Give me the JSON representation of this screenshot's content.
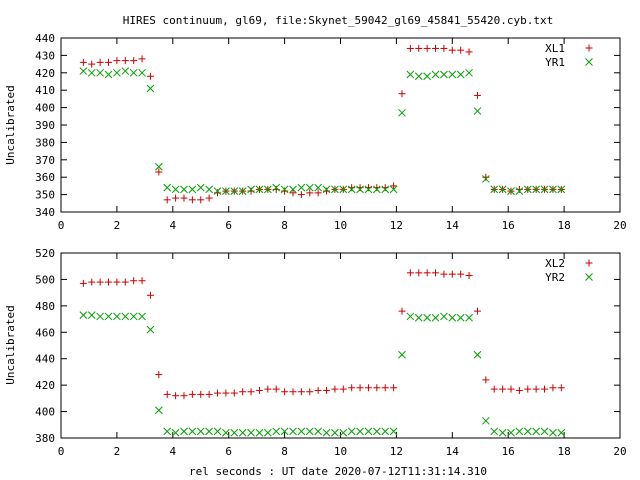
{
  "title": "HIRES continuum, gl69, file:Skynet_59042_gl69_45841_55420.cyb.txt",
  "xlabel": "rel seconds : UT date 2020-07-12T11:31:14.310",
  "colors": {
    "series1": "#cc0000",
    "series2": "#00a000"
  },
  "chart_data": [
    {
      "type": "scatter",
      "ylabel": "Uncalibrated",
      "xlim": [
        0,
        20
      ],
      "ylim": [
        340,
        440
      ],
      "xticks": [
        0,
        2,
        4,
        6,
        8,
        10,
        12,
        14,
        16,
        18,
        20
      ],
      "yticks": [
        340,
        350,
        360,
        370,
        380,
        390,
        400,
        410,
        420,
        430,
        440
      ],
      "grid": false,
      "legend": "top-right",
      "series": [
        {
          "name": "XL1",
          "marker": "plus",
          "x": [
            0.8,
            1.1,
            1.4,
            1.7,
            2.0,
            2.3,
            2.6,
            2.9,
            3.2,
            3.5,
            3.8,
            4.1,
            4.4,
            4.7,
            5.0,
            5.3,
            5.6,
            5.9,
            6.2,
            6.5,
            6.8,
            7.1,
            7.4,
            7.7,
            8.0,
            8.3,
            8.6,
            8.9,
            9.2,
            9.5,
            9.8,
            10.1,
            10.4,
            10.7,
            11.0,
            11.3,
            11.6,
            11.9,
            12.2,
            12.5,
            12.8,
            13.1,
            13.4,
            13.7,
            14.0,
            14.3,
            14.6,
            14.9,
            15.2,
            15.5,
            15.8,
            16.1,
            16.4,
            16.7,
            17.0,
            17.3,
            17.6,
            17.9
          ],
          "y": [
            426,
            425,
            426,
            426,
            427,
            427,
            427,
            428,
            418,
            363,
            347,
            348,
            348,
            347,
            347,
            348,
            351,
            352,
            352,
            352,
            352,
            353,
            353,
            353,
            352,
            351,
            350,
            351,
            351,
            352,
            353,
            353,
            354,
            354,
            354,
            354,
            354,
            355,
            408,
            434,
            434,
            434,
            434,
            434,
            433,
            433,
            432,
            407,
            360,
            353,
            353,
            352,
            353,
            353,
            353,
            353,
            353,
            353
          ]
        },
        {
          "name": "YR1",
          "marker": "cross",
          "x": [
            0.8,
            1.1,
            1.4,
            1.7,
            2.0,
            2.3,
            2.6,
            2.9,
            3.2,
            3.5,
            3.8,
            4.1,
            4.4,
            4.7,
            5.0,
            5.3,
            5.6,
            5.9,
            6.2,
            6.5,
            6.8,
            7.1,
            7.4,
            7.7,
            8.0,
            8.3,
            8.6,
            8.9,
            9.2,
            9.5,
            9.8,
            10.1,
            10.4,
            10.7,
            11.0,
            11.3,
            11.6,
            11.9,
            12.2,
            12.5,
            12.8,
            13.1,
            13.4,
            13.7,
            14.0,
            14.3,
            14.6,
            14.9,
            15.2,
            15.5,
            15.8,
            16.1,
            16.4,
            16.7,
            17.0,
            17.3,
            17.6,
            17.9
          ],
          "y": [
            421,
            420,
            420,
            419,
            420,
            421,
            420,
            420,
            411,
            366,
            354,
            353,
            353,
            353,
            354,
            353,
            352,
            352,
            352,
            352,
            353,
            353,
            353,
            354,
            353,
            353,
            354,
            354,
            354,
            353,
            353,
            353,
            353,
            353,
            353,
            353,
            353,
            353,
            397,
            419,
            418,
            418,
            419,
            419,
            419,
            419,
            420,
            398,
            359,
            353,
            353,
            352,
            352,
            353,
            353,
            353,
            353,
            353
          ]
        }
      ]
    },
    {
      "type": "scatter",
      "ylabel": "Uncalibrated",
      "xlim": [
        0,
        20
      ],
      "ylim": [
        380,
        520
      ],
      "xticks": [
        0,
        2,
        4,
        6,
        8,
        10,
        12,
        14,
        16,
        18,
        20
      ],
      "yticks": [
        380,
        400,
        420,
        440,
        460,
        480,
        500,
        520
      ],
      "grid": false,
      "legend": "top-right",
      "series": [
        {
          "name": "XL2",
          "marker": "plus",
          "x": [
            0.8,
            1.1,
            1.4,
            1.7,
            2.0,
            2.3,
            2.6,
            2.9,
            3.2,
            3.5,
            3.8,
            4.1,
            4.4,
            4.7,
            5.0,
            5.3,
            5.6,
            5.9,
            6.2,
            6.5,
            6.8,
            7.1,
            7.4,
            7.7,
            8.0,
            8.3,
            8.6,
            8.9,
            9.2,
            9.5,
            9.8,
            10.1,
            10.4,
            10.7,
            11.0,
            11.3,
            11.6,
            11.9,
            12.2,
            12.5,
            12.8,
            13.1,
            13.4,
            13.7,
            14.0,
            14.3,
            14.6,
            14.9,
            15.2,
            15.5,
            15.8,
            16.1,
            16.4,
            16.7,
            17.0,
            17.3,
            17.6,
            17.9
          ],
          "y": [
            497,
            498,
            498,
            498,
            498,
            498,
            499,
            499,
            488,
            428,
            413,
            412,
            412,
            413,
            413,
            413,
            414,
            414,
            414,
            415,
            415,
            416,
            417,
            417,
            415,
            415,
            415,
            415,
            416,
            416,
            417,
            417,
            418,
            418,
            418,
            418,
            418,
            418,
            476,
            505,
            505,
            505,
            505,
            504,
            504,
            504,
            503,
            476,
            424,
            417,
            417,
            417,
            416,
            417,
            417,
            417,
            418,
            418
          ]
        },
        {
          "name": "YR2",
          "marker": "cross",
          "x": [
            0.8,
            1.1,
            1.4,
            1.7,
            2.0,
            2.3,
            2.6,
            2.9,
            3.2,
            3.5,
            3.8,
            4.1,
            4.4,
            4.7,
            5.0,
            5.3,
            5.6,
            5.9,
            6.2,
            6.5,
            6.8,
            7.1,
            7.4,
            7.7,
            8.0,
            8.3,
            8.6,
            8.9,
            9.2,
            9.5,
            9.8,
            10.1,
            10.4,
            10.7,
            11.0,
            11.3,
            11.6,
            11.9,
            12.2,
            12.5,
            12.8,
            13.1,
            13.4,
            13.7,
            14.0,
            14.3,
            14.6,
            14.9,
            15.2,
            15.5,
            15.8,
            16.1,
            16.4,
            16.7,
            17.0,
            17.3,
            17.6,
            17.9
          ],
          "y": [
            473,
            473,
            472,
            472,
            472,
            472,
            472,
            472,
            462,
            401,
            385,
            384,
            385,
            385,
            385,
            385,
            385,
            384,
            384,
            384,
            384,
            384,
            384,
            385,
            385,
            385,
            385,
            385,
            385,
            384,
            384,
            384,
            385,
            385,
            385,
            385,
            385,
            385,
            443,
            472,
            471,
            471,
            471,
            472,
            471,
            471,
            471,
            443,
            393,
            385,
            384,
            384,
            385,
            385,
            385,
            385,
            384,
            384
          ]
        }
      ]
    }
  ]
}
